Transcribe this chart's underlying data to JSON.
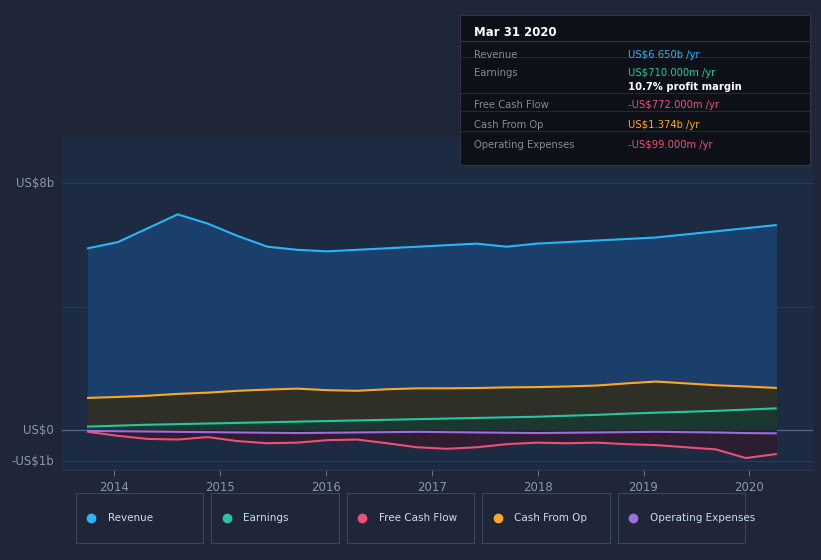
{
  "bg_color": "#1e2638",
  "plot_bg_color": "#1c2b42",
  "ylim": [
    -1.3,
    9.5
  ],
  "xlim": [
    2013.5,
    2020.6
  ],
  "xticks": [
    2014,
    2015,
    2016,
    2017,
    2018,
    2019,
    2020
  ],
  "ylabel_top": "US$8b",
  "ylabel_zero": "US$0",
  "ylabel_neg": "-US$1b",
  "yticks_lines": [
    8.0,
    4.0,
    0.0,
    -1.0
  ],
  "series": {
    "revenue": {
      "color": "#29b6f6",
      "fill_color": "#1a3f6a",
      "label": "Revenue",
      "values": [
        5.9,
        6.1,
        6.55,
        7.0,
        6.7,
        6.3,
        5.95,
        5.85,
        5.8,
        5.85,
        5.9,
        5.95,
        6.0,
        6.05,
        5.95,
        6.05,
        6.1,
        6.15,
        6.2,
        6.25,
        6.35,
        6.45,
        6.55,
        6.65
      ]
    },
    "earnings": {
      "color": "#26c6a0",
      "fill_color": "#1a3e38",
      "label": "Earnings",
      "values": [
        0.12,
        0.15,
        0.18,
        0.2,
        0.22,
        0.24,
        0.26,
        0.28,
        0.3,
        0.32,
        0.34,
        0.36,
        0.38,
        0.4,
        0.42,
        0.44,
        0.47,
        0.5,
        0.54,
        0.57,
        0.6,
        0.63,
        0.67,
        0.71
      ]
    },
    "free_cash_flow": {
      "color": "#e8517a",
      "fill_color": "#4a1a28",
      "label": "Free Cash Flow",
      "values": [
        -0.05,
        -0.18,
        -0.28,
        -0.3,
        -0.22,
        -0.35,
        -0.42,
        -0.4,
        -0.32,
        -0.3,
        -0.42,
        -0.55,
        -0.6,
        -0.55,
        -0.45,
        -0.4,
        -0.42,
        -0.4,
        -0.45,
        -0.48,
        -0.55,
        -0.62,
        -0.9,
        -0.772
      ]
    },
    "cash_from_op": {
      "color": "#ffa726",
      "fill_color": "#3a3020",
      "label": "Cash From Op",
      "values": [
        1.05,
        1.08,
        1.12,
        1.18,
        1.22,
        1.28,
        1.32,
        1.35,
        1.3,
        1.28,
        1.33,
        1.36,
        1.36,
        1.37,
        1.39,
        1.4,
        1.42,
        1.45,
        1.52,
        1.58,
        1.52,
        1.46,
        1.42,
        1.374
      ]
    },
    "operating_expenses": {
      "color": "#9c6fde",
      "fill_color": "#2a1a44",
      "label": "Operating Expenses",
      "values": [
        -0.02,
        -0.03,
        -0.04,
        -0.05,
        -0.06,
        -0.07,
        -0.08,
        -0.09,
        -0.08,
        -0.07,
        -0.06,
        -0.05,
        -0.06,
        -0.07,
        -0.08,
        -0.09,
        -0.08,
        -0.07,
        -0.06,
        -0.05,
        -0.06,
        -0.07,
        -0.09,
        -0.099
      ]
    }
  },
  "tooltip": {
    "box_bg": "#0d1117",
    "box_border": "#333344",
    "date": "Mar 31 2020",
    "date_color": "#ffffff",
    "rows": [
      {
        "label": "Revenue",
        "label_color": "#888899",
        "value": "US$6.650b /yr",
        "value_color": "#29b6f6"
      },
      {
        "label": "Earnings",
        "label_color": "#888899",
        "value": "US$710.000m /yr",
        "value_color": "#26c6a0"
      },
      {
        "label": "",
        "label_color": "#888899",
        "value": "10.7% profit margin",
        "value_color": "#ffffff"
      },
      {
        "label": "Free Cash Flow",
        "label_color": "#888899",
        "value": "-US$772.000m /yr",
        "value_color": "#e8517a"
      },
      {
        "label": "Cash From Op",
        "label_color": "#888899",
        "value": "US$1.374b /yr",
        "value_color": "#ffa726"
      },
      {
        "label": "Operating Expenses",
        "label_color": "#888899",
        "value": "-US$99.000m /yr",
        "value_color": "#e8517a"
      }
    ]
  },
  "legend": [
    {
      "label": "Revenue",
      "color": "#29b6f6"
    },
    {
      "label": "Earnings",
      "color": "#26c6a0"
    },
    {
      "label": "Free Cash Flow",
      "color": "#e8517a"
    },
    {
      "label": "Cash From Op",
      "color": "#ffa726"
    },
    {
      "label": "Operating Expenses",
      "color": "#9c6fde"
    }
  ]
}
